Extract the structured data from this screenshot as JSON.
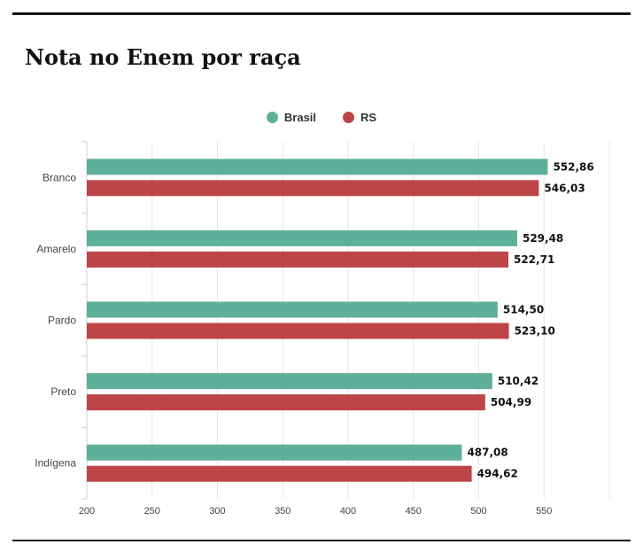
{
  "colors": {
    "brasil": "#5fb09b",
    "rs": "#be4447"
  },
  "chart_data": {
    "type": "bar",
    "orientation": "horizontal",
    "title": "Nota no Enem por raça",
    "categories": [
      "Branco",
      "Amarelo",
      "Pardo",
      "Preto",
      "Indígena"
    ],
    "series": [
      {
        "name": "Brasil",
        "values": [
          552.86,
          529.48,
          514.5,
          510.42,
          487.08
        ],
        "labels": [
          "552,86",
          "529,48",
          "514,50",
          "510,42",
          "487,08"
        ]
      },
      {
        "name": "RS",
        "values": [
          546.03,
          522.71,
          523.1,
          504.99,
          494.62
        ],
        "labels": [
          "546,03",
          "522,71",
          "523,10",
          "504,99",
          "494,62"
        ]
      }
    ],
    "xlim": [
      200,
      600
    ],
    "xticks": [
      200,
      250,
      300,
      350,
      400,
      450,
      500,
      550
    ],
    "xtick_labels": [
      "200",
      "250",
      "300",
      "350",
      "400",
      "450",
      "500",
      "550"
    ],
    "grid": true,
    "legend_position": "top-center"
  }
}
